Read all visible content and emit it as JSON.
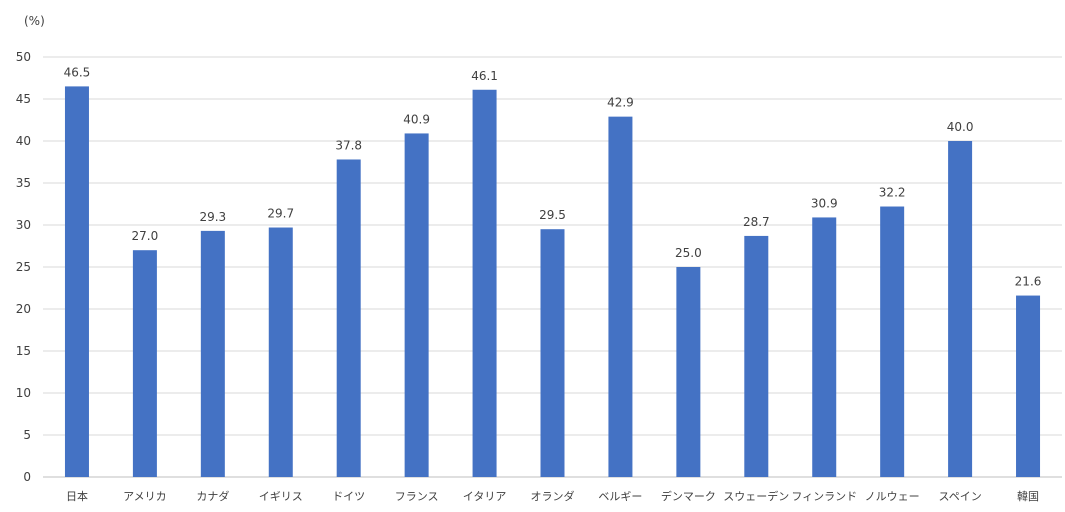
{
  "chart_data": {
    "type": "bar",
    "title": "",
    "xlabel": "",
    "ylabel": "",
    "unit_label": "(%)",
    "ylim": [
      0,
      50
    ],
    "yticks": [
      0,
      5,
      10,
      15,
      20,
      25,
      30,
      35,
      40,
      45,
      50
    ],
    "grid": true,
    "legend": "none",
    "bar_color": "#4472c4",
    "categories": [
      "日本",
      "アメリカ",
      "カナダ",
      "イギリス",
      "ドイツ",
      "フランス",
      "イタリア",
      "オランダ",
      "ベルギー",
      "デンマーク",
      "スウェーデン",
      "フィンランド",
      "ノルウェー",
      "スペイン",
      "韓国"
    ],
    "values": [
      46.5,
      27.0,
      29.3,
      29.7,
      37.8,
      40.9,
      46.1,
      29.5,
      42.9,
      25.0,
      28.7,
      30.9,
      32.2,
      40.0,
      21.6
    ],
    "value_labels": [
      "46.5",
      "27.0",
      "29.3",
      "29.7",
      "37.8",
      "40.9",
      "46.1",
      "29.5",
      "42.9",
      "25.0",
      "28.7",
      "30.9",
      "32.2",
      "40.0",
      "21.6"
    ]
  }
}
